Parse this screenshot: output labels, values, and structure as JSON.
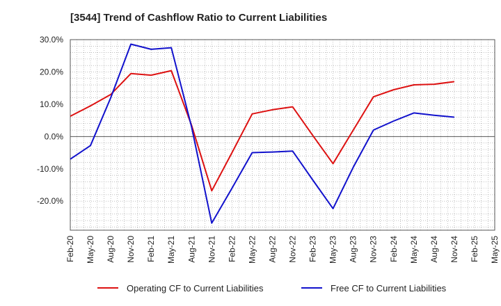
{
  "chart_data": {
    "type": "line",
    "title": "[3544]  Trend of Cashflow Ratio to Current Liabilities",
    "xlabel": "",
    "ylabel": "",
    "ylim": [
      -29,
      30
    ],
    "yticks": [
      30,
      20,
      10,
      0,
      -10,
      -20
    ],
    "ytick_labels": [
      "30.0%",
      "20.0%",
      "10.0%",
      "0.0%",
      "-10.0%",
      "-20.0%"
    ],
    "categories": [
      "Feb-20",
      "May-20",
      "Aug-20",
      "Nov-20",
      "Feb-21",
      "May-21",
      "Aug-21",
      "Nov-21",
      "Feb-22",
      "May-22",
      "Aug-22",
      "Nov-22",
      "Feb-23",
      "May-23",
      "Aug-23",
      "Nov-23",
      "Feb-24",
      "May-24",
      "Aug-24",
      "Nov-24",
      "Feb-25",
      "May-25"
    ],
    "grid": true,
    "legend_position": "bottom",
    "series": [
      {
        "name": "Operating CF to Current Liabilities",
        "color": "#dd1111",
        "values": [
          6.3,
          9.5,
          13.0,
          19.5,
          19.0,
          20.4,
          3.5,
          -16.8,
          -5.0,
          7.0,
          8.3,
          9.2,
          0.3,
          -8.4,
          2.0,
          12.3,
          14.5,
          16.0,
          16.2,
          17.0,
          null,
          null
        ]
      },
      {
        "name": "Free CF to Current Liabilities",
        "color": "#1111cc",
        "values": [
          -7.0,
          -2.8,
          12.0,
          28.6,
          27.0,
          27.5,
          3.0,
          -26.8,
          -16.0,
          -5.0,
          -4.8,
          -4.5,
          -13.5,
          -22.3,
          -9.5,
          2.0,
          4.8,
          7.3,
          6.6,
          6.0,
          null,
          null
        ]
      }
    ]
  }
}
